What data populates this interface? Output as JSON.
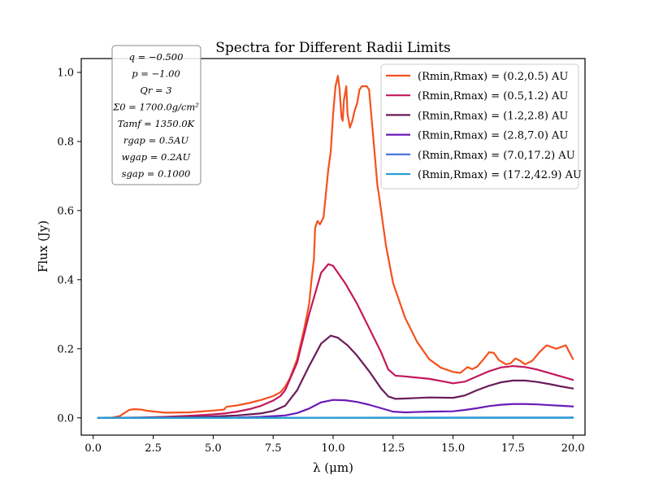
{
  "chart_data": {
    "type": "line",
    "title": "Spectra for Different Radii Limits",
    "xlabel": "λ (μm)",
    "ylabel": "Flux (Jy)",
    "xlim": [
      -0.5,
      20.5
    ],
    "ylim": [
      -0.05,
      1.04
    ],
    "xticks": [
      0.0,
      2.5,
      5.0,
      7.5,
      10.0,
      12.5,
      15.0,
      17.5,
      20.0
    ],
    "xtick_labels": [
      "0.0",
      "2.5",
      "5.0",
      "7.5",
      "10.0",
      "12.5",
      "15.0",
      "17.5",
      "20.0"
    ],
    "yticks": [
      0.0,
      0.2,
      0.4,
      0.6,
      0.8,
      1.0
    ],
    "ytick_labels": [
      "0.0",
      "0.2",
      "0.4",
      "0.6",
      "0.8",
      "1.0"
    ],
    "grid": false,
    "legend_position": "top-right",
    "parameter_box": {
      "position": "top-left",
      "lines": [
        "q = −0.500",
        "p = −1.00",
        "Qr = 3",
        "Σ0 = 1700.0g/cm²",
        "Tamf = 1350.0K",
        "rgap = 0.5AU",
        "wgap = 0.2AU",
        "sgap = 0.1000"
      ]
    },
    "series": [
      {
        "name": "(Rmin,Rmax) = (0.2,0.5) AU",
        "color": "#f4511e",
        "points": [
          [
            0.2,
            0.0
          ],
          [
            0.8,
            0.001
          ],
          [
            1.1,
            0.005
          ],
          [
            1.3,
            0.014
          ],
          [
            1.5,
            0.023
          ],
          [
            1.7,
            0.025
          ],
          [
            2.0,
            0.024
          ],
          [
            2.3,
            0.02
          ],
          [
            3.0,
            0.015
          ],
          [
            4.0,
            0.016
          ],
          [
            5.0,
            0.021
          ],
          [
            5.45,
            0.024
          ],
          [
            5.55,
            0.032
          ],
          [
            6.0,
            0.036
          ],
          [
            6.5,
            0.043
          ],
          [
            7.0,
            0.052
          ],
          [
            7.5,
            0.063
          ],
          [
            7.8,
            0.074
          ],
          [
            8.0,
            0.09
          ],
          [
            8.2,
            0.115
          ],
          [
            8.5,
            0.17
          ],
          [
            8.8,
            0.26
          ],
          [
            9.0,
            0.33
          ],
          [
            9.1,
            0.4
          ],
          [
            9.2,
            0.46
          ],
          [
            9.25,
            0.55
          ],
          [
            9.35,
            0.57
          ],
          [
            9.45,
            0.56
          ],
          [
            9.6,
            0.58
          ],
          [
            9.7,
            0.65
          ],
          [
            9.8,
            0.72
          ],
          [
            9.9,
            0.77
          ],
          [
            10.0,
            0.88
          ],
          [
            10.1,
            0.96
          ],
          [
            10.2,
            0.99
          ],
          [
            10.27,
            0.95
          ],
          [
            10.35,
            0.87
          ],
          [
            10.4,
            0.86
          ],
          [
            10.45,
            0.92
          ],
          [
            10.55,
            0.96
          ],
          [
            10.6,
            0.88
          ],
          [
            10.7,
            0.84
          ],
          [
            10.8,
            0.86
          ],
          [
            10.9,
            0.89
          ],
          [
            11.0,
            0.91
          ],
          [
            11.1,
            0.95
          ],
          [
            11.2,
            0.96
          ],
          [
            11.4,
            0.96
          ],
          [
            11.5,
            0.95
          ],
          [
            11.6,
            0.87
          ],
          [
            11.75,
            0.75
          ],
          [
            11.85,
            0.67
          ],
          [
            11.9,
            0.65
          ],
          [
            12.0,
            0.6
          ],
          [
            12.2,
            0.5
          ],
          [
            12.5,
            0.39
          ],
          [
            13.0,
            0.29
          ],
          [
            13.5,
            0.22
          ],
          [
            14.0,
            0.17
          ],
          [
            14.5,
            0.145
          ],
          [
            15.0,
            0.133
          ],
          [
            15.3,
            0.13
          ],
          [
            15.6,
            0.147
          ],
          [
            15.8,
            0.141
          ],
          [
            16.0,
            0.148
          ],
          [
            16.3,
            0.172
          ],
          [
            16.5,
            0.19
          ],
          [
            16.7,
            0.188
          ],
          [
            16.9,
            0.168
          ],
          [
            17.2,
            0.155
          ],
          [
            17.4,
            0.158
          ],
          [
            17.6,
            0.172
          ],
          [
            17.8,
            0.165
          ],
          [
            18.0,
            0.155
          ],
          [
            18.3,
            0.165
          ],
          [
            18.6,
            0.19
          ],
          [
            18.9,
            0.21
          ],
          [
            19.1,
            0.205
          ],
          [
            19.3,
            0.2
          ],
          [
            19.5,
            0.205
          ],
          [
            19.7,
            0.21
          ],
          [
            19.85,
            0.19
          ],
          [
            20.0,
            0.17
          ]
        ]
      },
      {
        "name": "(Rmin,Rmax) = (0.5,1.2) AU",
        "color": "#c2185b",
        "points": [
          [
            0.2,
            0.0
          ],
          [
            2.0,
            0.001
          ],
          [
            3.0,
            0.003
          ],
          [
            4.0,
            0.006
          ],
          [
            5.0,
            0.01
          ],
          [
            5.5,
            0.013
          ],
          [
            6.0,
            0.018
          ],
          [
            6.5,
            0.025
          ],
          [
            7.0,
            0.035
          ],
          [
            7.5,
            0.05
          ],
          [
            7.8,
            0.063
          ],
          [
            8.0,
            0.08
          ],
          [
            8.5,
            0.16
          ],
          [
            9.0,
            0.3
          ],
          [
            9.5,
            0.42
          ],
          [
            9.8,
            0.445
          ],
          [
            10.0,
            0.44
          ],
          [
            10.5,
            0.39
          ],
          [
            11.0,
            0.33
          ],
          [
            11.5,
            0.26
          ],
          [
            12.0,
            0.19
          ],
          [
            12.3,
            0.14
          ],
          [
            12.6,
            0.122
          ],
          [
            13.0,
            0.12
          ],
          [
            14.0,
            0.113
          ],
          [
            14.7,
            0.104
          ],
          [
            15.0,
            0.1
          ],
          [
            15.5,
            0.105
          ],
          [
            16.0,
            0.12
          ],
          [
            16.5,
            0.135
          ],
          [
            17.0,
            0.146
          ],
          [
            17.5,
            0.15
          ],
          [
            18.0,
            0.147
          ],
          [
            18.5,
            0.14
          ],
          [
            19.0,
            0.13
          ],
          [
            19.5,
            0.12
          ],
          [
            20.0,
            0.11
          ]
        ]
      },
      {
        "name": "(Rmin,Rmax) = (1.2,2.8) AU",
        "color": "#6a1b5a",
        "points": [
          [
            0.2,
            0.0
          ],
          [
            3.0,
            0.001
          ],
          [
            4.0,
            0.002
          ],
          [
            5.0,
            0.004
          ],
          [
            6.0,
            0.007
          ],
          [
            7.0,
            0.013
          ],
          [
            7.5,
            0.02
          ],
          [
            8.0,
            0.035
          ],
          [
            8.5,
            0.08
          ],
          [
            9.0,
            0.15
          ],
          [
            9.5,
            0.215
          ],
          [
            9.9,
            0.238
          ],
          [
            10.2,
            0.232
          ],
          [
            10.6,
            0.21
          ],
          [
            11.0,
            0.18
          ],
          [
            11.5,
            0.135
          ],
          [
            12.0,
            0.085
          ],
          [
            12.3,
            0.062
          ],
          [
            12.6,
            0.055
          ],
          [
            13.0,
            0.056
          ],
          [
            14.0,
            0.059
          ],
          [
            15.0,
            0.058
          ],
          [
            15.5,
            0.065
          ],
          [
            16.0,
            0.08
          ],
          [
            16.5,
            0.093
          ],
          [
            17.0,
            0.103
          ],
          [
            17.5,
            0.108
          ],
          [
            18.0,
            0.108
          ],
          [
            18.5,
            0.104
          ],
          [
            19.0,
            0.098
          ],
          [
            19.5,
            0.091
          ],
          [
            20.0,
            0.085
          ]
        ]
      },
      {
        "name": "(Rmin,Rmax) = (2.8,7.0) AU",
        "color": "#6a1bb5",
        "points": [
          [
            0.2,
            0.0
          ],
          [
            6.0,
            0.001
          ],
          [
            7.0,
            0.003
          ],
          [
            8.0,
            0.007
          ],
          [
            8.5,
            0.014
          ],
          [
            9.0,
            0.027
          ],
          [
            9.5,
            0.045
          ],
          [
            10.0,
            0.052
          ],
          [
            10.5,
            0.051
          ],
          [
            11.0,
            0.046
          ],
          [
            11.5,
            0.038
          ],
          [
            12.0,
            0.028
          ],
          [
            12.5,
            0.018
          ],
          [
            13.0,
            0.016
          ],
          [
            14.0,
            0.018
          ],
          [
            15.0,
            0.019
          ],
          [
            15.5,
            0.023
          ],
          [
            16.0,
            0.028
          ],
          [
            16.5,
            0.034
          ],
          [
            17.0,
            0.038
          ],
          [
            17.5,
            0.04
          ],
          [
            18.0,
            0.04
          ],
          [
            18.5,
            0.039
          ],
          [
            19.0,
            0.037
          ],
          [
            19.5,
            0.035
          ],
          [
            20.0,
            0.033
          ]
        ]
      },
      {
        "name": "(Rmin,Rmax) = (7.0,17.2) AU",
        "color": "#3f6fdc",
        "points": [
          [
            0.2,
            0.0
          ],
          [
            20.0,
            0.001
          ]
        ]
      },
      {
        "name": "(Rmin,Rmax) = (17.2,42.9) AU",
        "color": "#26a0d2",
        "points": [
          [
            0.2,
            0.0
          ],
          [
            20.0,
            0.0
          ]
        ]
      }
    ]
  }
}
